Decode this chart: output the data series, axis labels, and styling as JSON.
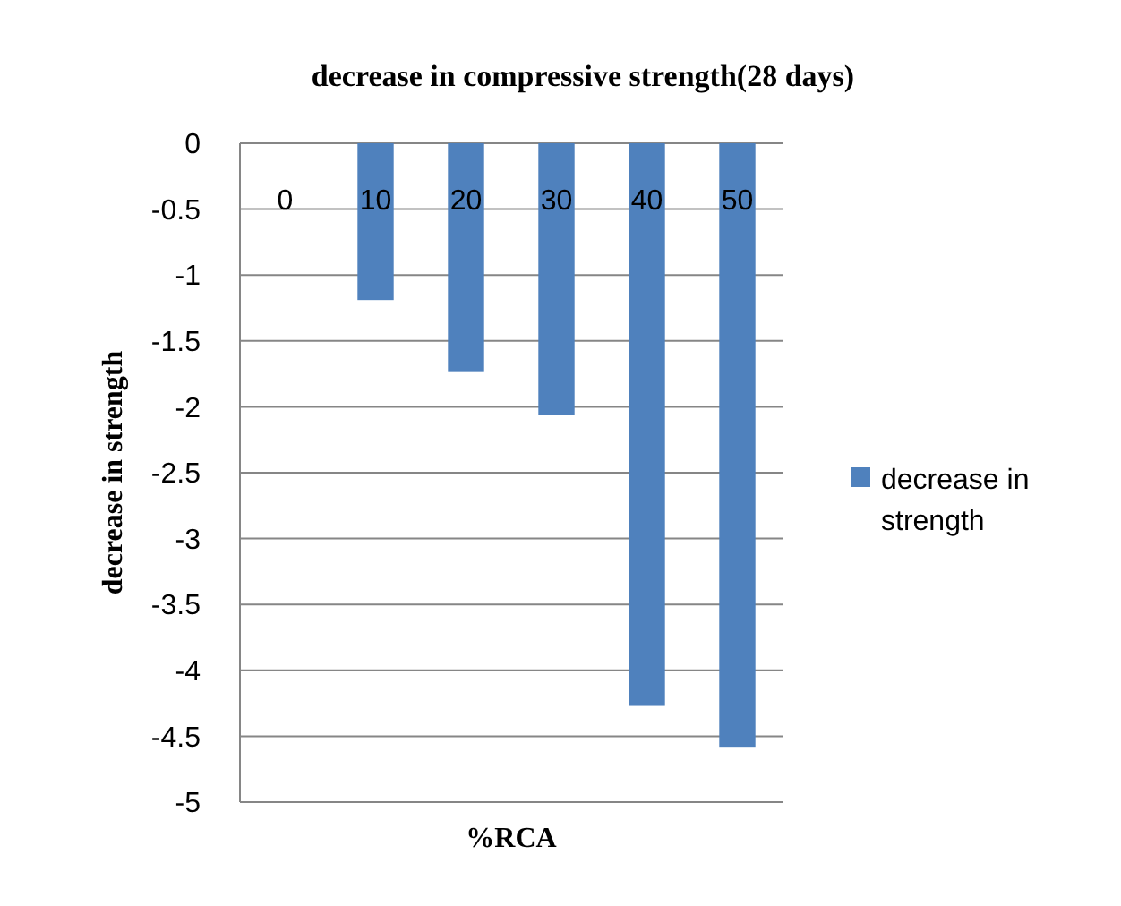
{
  "chart_data": {
    "type": "bar",
    "title": "decrease in compressive strength(28 days)",
    "xlabel": "%RCA",
    "ylabel": "decrease in strength",
    "categories": [
      "0",
      "10",
      "20",
      "30",
      "40",
      "50"
    ],
    "series": [
      {
        "name": "decrease in strength",
        "color": "#4f81bd",
        "values": [
          0,
          -1.19,
          -1.73,
          -2.06,
          -4.27,
          -4.58
        ]
      }
    ],
    "ylim": [
      -5,
      0
    ],
    "yticks": [
      0,
      -0.5,
      -1,
      -1.5,
      -2,
      -2.5,
      -3,
      -3.5,
      -4,
      -4.5,
      -5
    ],
    "grid": "y",
    "legend": "right"
  }
}
